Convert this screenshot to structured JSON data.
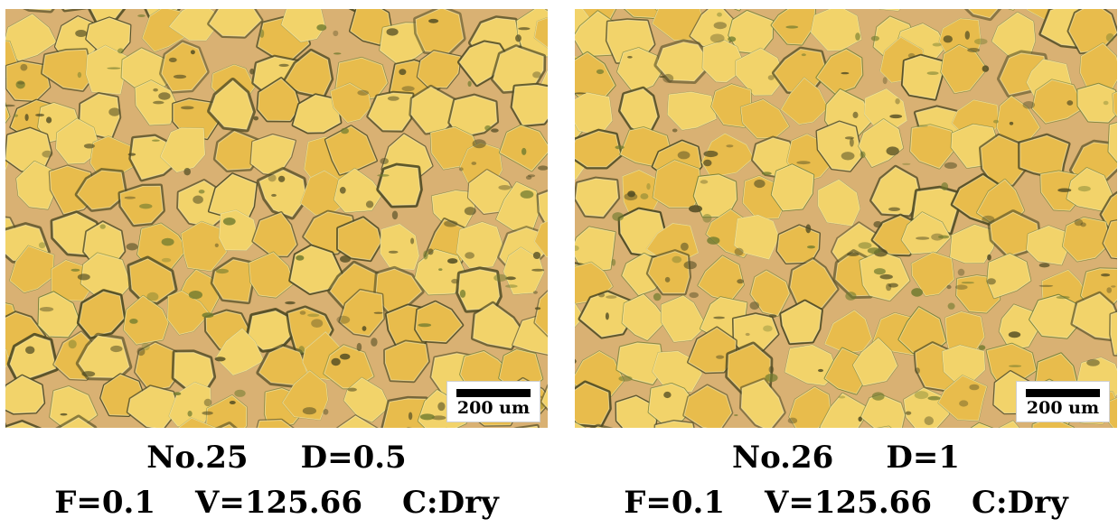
{
  "panels": [
    {
      "scale_label": "200 um",
      "sample": "No.25",
      "d_param": "D=0.5",
      "f_param": "F=0.1",
      "v_param": "V=125.66",
      "c_param": "C:Dry"
    },
    {
      "scale_label": "200 um",
      "sample": "No.26",
      "d_param": "D=1",
      "f_param": "F=0.1",
      "v_param": "V=125.66",
      "c_param": "C:Dry"
    }
  ],
  "colors": {
    "matrix": "#e8bc4c",
    "grain": "#f2d36a",
    "boundary_dark": "#4f4a22",
    "boundary_green": "#6f7a2e",
    "boundary_tan": "#d9b173"
  }
}
